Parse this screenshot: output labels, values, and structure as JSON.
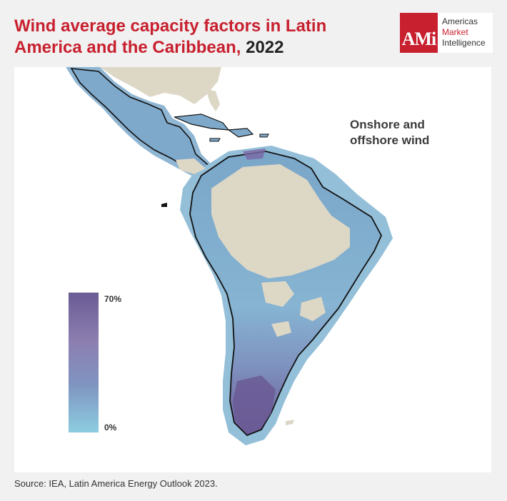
{
  "header": {
    "title": "Wind average capacity factors in Latin America and the Caribbean,",
    "year": "2022"
  },
  "logo": {
    "mark": "AMi",
    "line1": "Americas",
    "line2": "Market",
    "line3": "Intelligence"
  },
  "map": {
    "subtitle": "Onshore and offshore wind",
    "colors": {
      "non_target_land": "#ddd7c6",
      "low_wind": "#8ccde0",
      "mid_wind": "#7f93c0",
      "high_wind": "#6b5b95",
      "border": "#111111"
    }
  },
  "legend": {
    "max_label": "70%",
    "min_label": "0%",
    "max_value": 70,
    "min_value": 0
  },
  "footer": {
    "source": "Source: IEA, Latin America Energy Outlook 2023."
  }
}
